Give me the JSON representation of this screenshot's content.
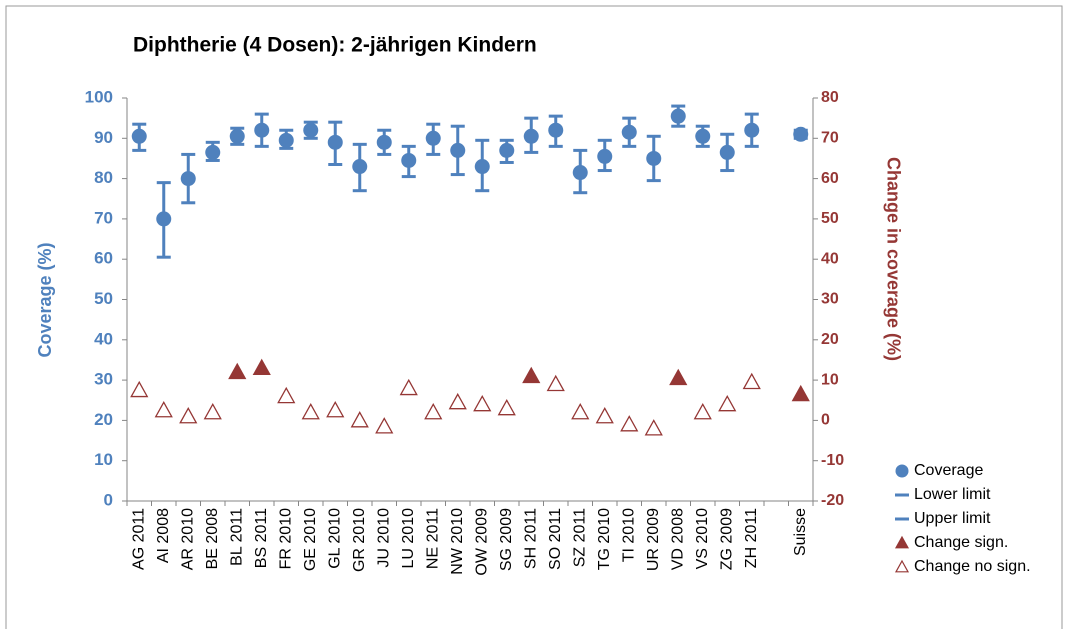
{
  "chart_data": {
    "type": "errorbar",
    "title": "Diphtherie (4 Dosen): 2-jährigen Kindern",
    "ylabel": "Coverage (%)",
    "y2label": "Change in coverage (%)",
    "categories": [
      "AG 2011",
      "AI 2008",
      "AR 2010",
      "BE 2008",
      "BL 2011",
      "BS 2011",
      "FR 2010",
      "GE 2010",
      "GL 2010",
      "GR 2010",
      "JU 2010",
      "LU 2010",
      "NE 2011",
      "NW 2010",
      "OW 2009",
      "SG 2009",
      "SH 2011",
      "SO 2011",
      "SZ 2011",
      "TG 2010",
      "TI 2010",
      "UR 2009",
      "VD 2008",
      "VS 2010",
      "ZG 2009",
      "ZH 2011",
      null,
      "Suisse"
    ],
    "series": [
      {
        "name": "Coverage",
        "color": "#4f81bd",
        "values": [
          90.5,
          70,
          80,
          86.5,
          90.5,
          92,
          89.5,
          92,
          89,
          83,
          89,
          84.5,
          90,
          87,
          83,
          87,
          90.5,
          92,
          81.5,
          85.5,
          91.5,
          85,
          95.5,
          90.5,
          86.5,
          92,
          null,
          91
        ]
      },
      {
        "name": "Lower limit",
        "color": "#4f81bd",
        "values": [
          87,
          60.5,
          74,
          84.5,
          88.5,
          88,
          87.5,
          90,
          83.5,
          77,
          86,
          80.5,
          86,
          81,
          77,
          84,
          86.5,
          88,
          76.5,
          82,
          88,
          79.5,
          93,
          88,
          82,
          88,
          null,
          90
        ]
      },
      {
        "name": "Upper limit",
        "color": "#4f81bd",
        "values": [
          93.5,
          79,
          86,
          89,
          92.5,
          96,
          92,
          94,
          94,
          88.5,
          92,
          88,
          93.5,
          93,
          89.5,
          89.5,
          95,
          95.5,
          87,
          89.5,
          95,
          90.5,
          98,
          93,
          91,
          96,
          null,
          92
        ]
      },
      {
        "name": "Change sign.",
        "color": "#953735",
        "axis": "y2",
        "values": [
          null,
          null,
          null,
          null,
          12,
          13,
          null,
          null,
          null,
          null,
          null,
          null,
          null,
          null,
          null,
          null,
          11,
          null,
          null,
          null,
          null,
          null,
          10.5,
          null,
          null,
          null,
          null,
          6.5
        ]
      },
      {
        "name": "Change no sign.",
        "color": "#953735",
        "axis": "y2",
        "values": [
          7.5,
          2.5,
          1,
          2,
          null,
          null,
          6,
          2,
          2.5,
          0,
          -1.5,
          8,
          2,
          4.5,
          4,
          3,
          null,
          9,
          2,
          1,
          -1,
          -2,
          null,
          2,
          4,
          9.5,
          null,
          null
        ]
      }
    ],
    "ylim": [
      0,
      100
    ],
    "yticks": [
      0,
      10,
      20,
      30,
      40,
      50,
      60,
      70,
      80,
      90,
      100
    ],
    "y2lim": [
      -20,
      80
    ],
    "y2ticks": [
      -20,
      -10,
      0,
      10,
      20,
      30,
      40,
      50,
      60,
      70,
      80
    ],
    "grid": false
  }
}
